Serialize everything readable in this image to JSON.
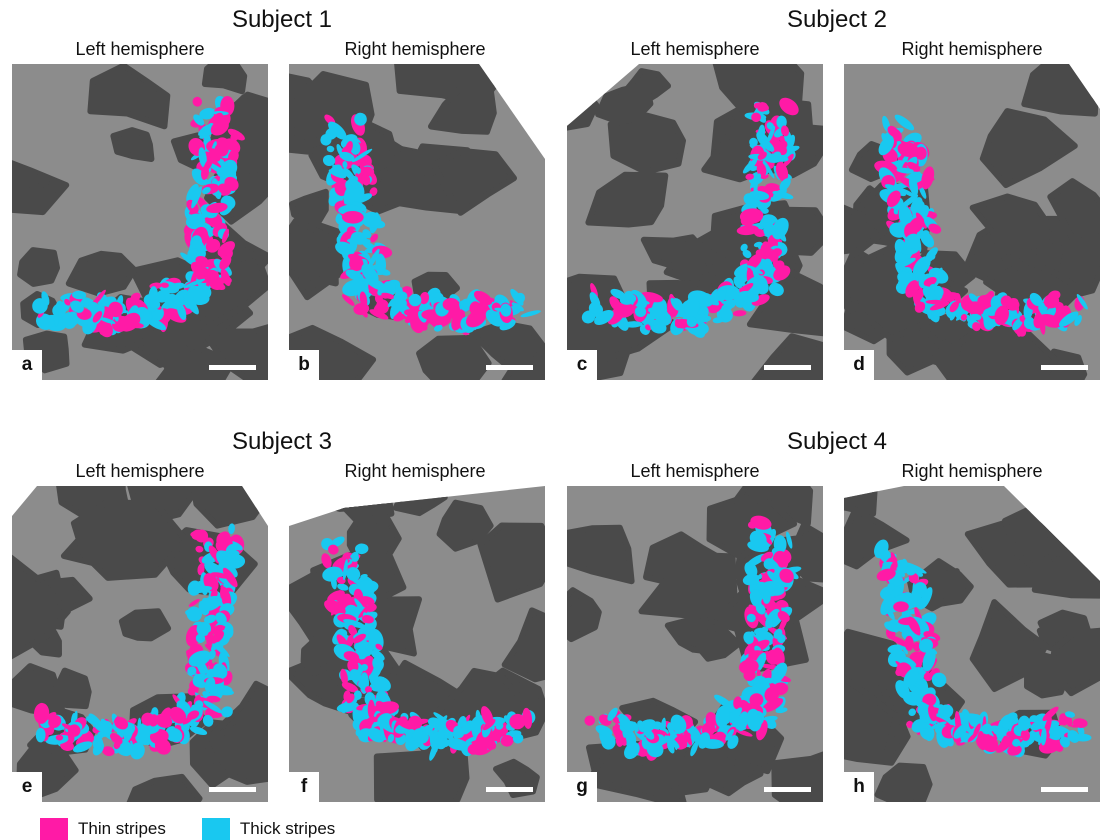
{
  "subjects": [
    {
      "title": "Subject 1"
    },
    {
      "title": "Subject 2"
    },
    {
      "title": "Subject 3"
    },
    {
      "title": "Subject 4"
    }
  ],
  "hemisphere_labels": {
    "left": "Left hemisphere",
    "right": "Right hemisphere"
  },
  "panels": [
    {
      "letter": "a"
    },
    {
      "letter": "b"
    },
    {
      "letter": "c"
    },
    {
      "letter": "d"
    },
    {
      "letter": "e"
    },
    {
      "letter": "f"
    },
    {
      "letter": "g"
    },
    {
      "letter": "h"
    }
  ],
  "legend": {
    "thin": {
      "label": "Thin stripes",
      "color": "#ff1aa6"
    },
    "thick": {
      "label": "Thick stripes",
      "color": "#19c8f0"
    }
  },
  "colors": {
    "gyri": "#8c8c8c",
    "sulci": "#4a4a4a"
  }
}
